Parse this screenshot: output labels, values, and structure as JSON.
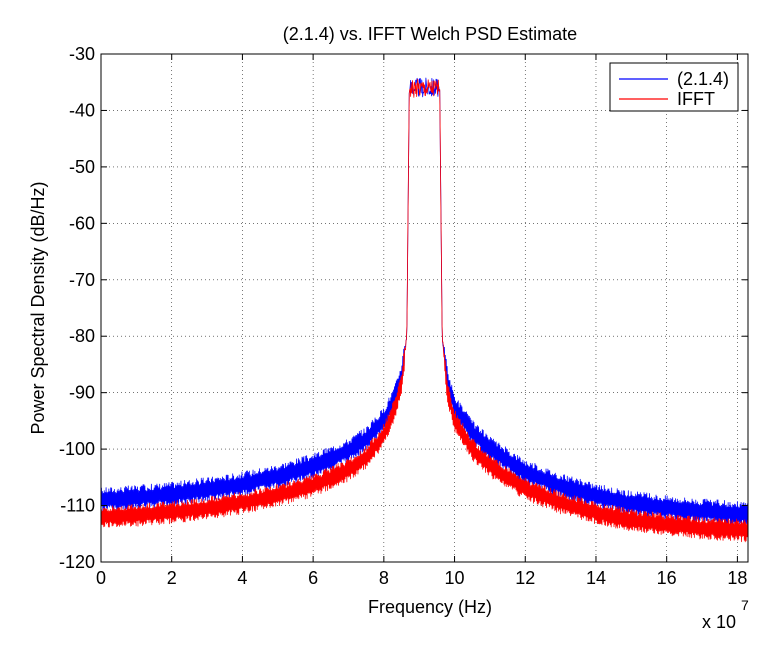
{
  "chart_data": {
    "type": "line",
    "title": "(2.1.4) vs. IFFT Welch PSD Estimate",
    "xlabel": "Frequency (Hz)",
    "ylabel": "Power Spectral Density (dB/Hz)",
    "x_multiplier": "x 10",
    "x_multiplier_exponent": "7",
    "xlim": [
      0,
      18.3
    ],
    "ylim": [
      -120,
      -30
    ],
    "x_ticks": [
      0,
      2,
      4,
      6,
      8,
      10,
      12,
      14,
      16,
      18
    ],
    "y_ticks": [
      -30,
      -40,
      -50,
      -60,
      -70,
      -80,
      -90,
      -100,
      -110,
      -120
    ],
    "grid": true,
    "legend_position": "top-right",
    "series": [
      {
        "name": "(2.1.4)",
        "color": "#0000ff",
        "x": [
          0,
          1,
          2,
          3,
          4,
          5,
          6,
          7,
          7.5,
          8,
          8.3,
          8.5,
          8.65,
          8.72,
          8.8,
          9.0,
          9.2,
          9.4,
          9.5,
          9.58,
          9.65,
          9.8,
          10,
          10.5,
          11,
          12,
          13,
          14,
          15,
          16,
          17,
          18.3
        ],
        "y": [
          -109,
          -108.6,
          -108,
          -107.2,
          -106.2,
          -104.8,
          -103,
          -100.3,
          -98.2,
          -94.8,
          -91,
          -87,
          -80,
          -36,
          -36,
          -36,
          -36,
          -36,
          -36,
          -36,
          -80,
          -88,
          -92.5,
          -97,
          -100,
          -104,
          -106.5,
          -108.3,
          -109.6,
          -110.4,
          -111,
          -111.5
        ],
        "band": 2.2
      },
      {
        "name": "IFFT",
        "color": "#ff0000",
        "x": [
          0,
          1,
          2,
          3,
          4,
          5,
          6,
          7,
          7.5,
          8,
          8.3,
          8.5,
          8.65,
          8.72,
          8.8,
          9.0,
          9.2,
          9.4,
          9.5,
          9.58,
          9.65,
          9.8,
          10,
          10.5,
          11,
          12,
          13,
          14,
          15,
          16,
          17,
          18.3
        ],
        "y": [
          -112,
          -111.7,
          -111.2,
          -110.5,
          -109.5,
          -108.2,
          -106.5,
          -103.7,
          -101.5,
          -97.5,
          -93,
          -88.5,
          -80,
          -36,
          -36,
          -36,
          -36,
          -36,
          -36,
          -36,
          -80,
          -90,
          -95,
          -100,
          -103,
          -107,
          -109.5,
          -111.3,
          -112.6,
          -113.4,
          -114,
          -114.5
        ],
        "band": 2.0
      }
    ]
  }
}
